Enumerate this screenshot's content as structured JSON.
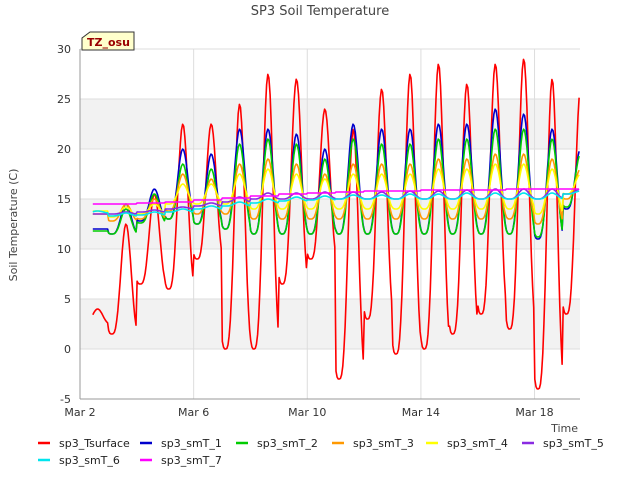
{
  "chart_data": {
    "type": "line",
    "title": "SP3 Soil Temperature",
    "xlabel": "Time",
    "ylabel": "Soil Temperature (C)",
    "badge": "TZ_osu",
    "ylim": [
      -5,
      30
    ],
    "xlim": [
      0,
      17.6
    ],
    "yticks": [
      -5,
      0,
      5,
      10,
      15,
      20,
      25,
      30
    ],
    "xticks": [
      {
        "day": 0,
        "label": "Mar 2"
      },
      {
        "day": 4,
        "label": "Mar 6"
      },
      {
        "day": 8,
        "label": "Mar 10"
      },
      {
        "day": 12,
        "label": "Mar 14"
      },
      {
        "day": 16,
        "label": "Mar 18"
      }
    ],
    "grid": true,
    "legend_position": "bottom",
    "series": [
      {
        "name": "sp3_Tsurface",
        "color": "#ff0000",
        "day_min": [
          2.5,
          1.5,
          6.5,
          6.0,
          9.0,
          0.0,
          0.0,
          6.5,
          9.0,
          -3.0,
          3.0,
          -0.5,
          0.0,
          1.5,
          3.5,
          2.0,
          -4.0,
          3.5
        ],
        "day_max": [
          4.0,
          12.5,
          15.5,
          22.5,
          22.5,
          24.5,
          27.5,
          27.0,
          24.0,
          22.0,
          26.0,
          27.5,
          28.5,
          26.5,
          28.5,
          29.0,
          27.0,
          26.0
        ]
      },
      {
        "name": "sp3_smT_1",
        "color": "#0000cc",
        "day_min": [
          12.0,
          11.5,
          12.8,
          13.0,
          12.5,
          12.0,
          11.5,
          11.5,
          11.5,
          11.5,
          11.5,
          11.5,
          11.5,
          11.5,
          11.5,
          11.5,
          11.0,
          14.0
        ],
        "day_max": [
          12.0,
          14.5,
          16.0,
          20.0,
          19.5,
          22.0,
          22.0,
          21.5,
          20.0,
          22.5,
          22.0,
          22.0,
          22.5,
          22.5,
          24.0,
          23.5,
          22.0,
          20.0
        ]
      },
      {
        "name": "sp3_smT_2",
        "color": "#00cc00",
        "day_min": [
          11.8,
          11.5,
          12.6,
          13.0,
          12.5,
          12.0,
          11.5,
          11.5,
          11.5,
          11.5,
          11.5,
          11.5,
          11.5,
          11.5,
          11.5,
          11.5,
          11.2,
          14.2
        ],
        "day_max": [
          11.8,
          14.0,
          15.5,
          18.5,
          18.0,
          20.5,
          21.0,
          20.5,
          19.0,
          21.0,
          20.5,
          20.5,
          21.0,
          21.0,
          22.0,
          22.0,
          21.0,
          19.5
        ]
      },
      {
        "name": "sp3_smT_3",
        "color": "#ff9900",
        "day_min": [
          13.5,
          12.8,
          13.0,
          13.8,
          13.5,
          13.5,
          13.0,
          13.0,
          13.0,
          13.0,
          13.0,
          13.0,
          13.0,
          13.0,
          13.0,
          13.0,
          12.5,
          15.0
        ],
        "day_max": [
          13.5,
          14.5,
          15.0,
          17.5,
          17.0,
          18.5,
          19.0,
          18.5,
          17.5,
          18.5,
          18.5,
          18.5,
          19.0,
          19.0,
          19.5,
          19.5,
          19.0,
          18.0
        ]
      },
      {
        "name": "sp3_smT_4",
        "color": "#ffff00",
        "day_min": [
          13.8,
          13.2,
          13.5,
          14.5,
          14.5,
          14.5,
          14.0,
          14.0,
          14.0,
          14.0,
          14.0,
          14.0,
          14.0,
          14.0,
          14.0,
          14.0,
          13.5,
          15.5
        ],
        "day_max": [
          13.8,
          14.2,
          14.5,
          16.5,
          16.5,
          17.5,
          18.0,
          17.5,
          17.0,
          17.5,
          17.5,
          17.5,
          18.0,
          18.0,
          18.5,
          18.5,
          18.0,
          17.5
        ]
      },
      {
        "name": "sp3_smT_5",
        "color": "#8a2be2",
        "day_min": [
          13.5,
          13.5,
          13.7,
          14.0,
          14.3,
          14.7,
          15.0,
          15.0,
          15.0,
          15.0,
          15.0,
          15.0,
          15.0,
          15.0,
          15.0,
          15.0,
          15.0,
          15.5
        ],
        "day_max": [
          13.5,
          13.7,
          13.9,
          14.2,
          14.6,
          15.2,
          15.6,
          15.6,
          15.7,
          15.7,
          15.7,
          15.8,
          15.8,
          15.9,
          16.0,
          16.0,
          16.0,
          16.0
        ]
      },
      {
        "name": "sp3_smT_6",
        "color": "#00e5ee",
        "day_min": [
          13.6,
          13.3,
          13.4,
          13.7,
          14.0,
          14.3,
          14.6,
          14.8,
          14.9,
          15.0,
          15.0,
          15.0,
          15.0,
          15.0,
          15.0,
          15.0,
          15.0,
          15.5
        ],
        "day_max": [
          13.8,
          13.6,
          13.7,
          14.0,
          14.3,
          14.7,
          15.0,
          15.2,
          15.3,
          15.4,
          15.4,
          15.5,
          15.5,
          15.6,
          15.6,
          15.6,
          15.6,
          15.8
        ]
      },
      {
        "name": "sp3_smT_7",
        "color": "#ff00ff",
        "day_min": [
          14.5,
          14.5,
          14.6,
          14.7,
          14.9,
          15.1,
          15.3,
          15.5,
          15.6,
          15.7,
          15.8,
          15.8,
          15.9,
          15.9,
          15.9,
          16.0,
          16.0,
          16.0
        ],
        "day_max": [
          14.5,
          14.5,
          14.6,
          14.7,
          14.9,
          15.1,
          15.3,
          15.5,
          15.6,
          15.7,
          15.8,
          15.8,
          15.9,
          15.9,
          15.9,
          16.0,
          16.0,
          16.0
        ]
      }
    ]
  }
}
